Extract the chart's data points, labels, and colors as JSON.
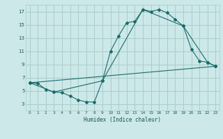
{
  "xlabel": "Humidex (Indice chaleur)",
  "background_color": "#cce8e8",
  "grid_color": "#aacccc",
  "line_color": "#1a6b6b",
  "xlim": [
    -0.5,
    23.5
  ],
  "ylim": [
    2.0,
    18.0
  ],
  "yticks": [
    3,
    5,
    7,
    9,
    11,
    13,
    15,
    17
  ],
  "xticks": [
    0,
    1,
    2,
    3,
    4,
    5,
    6,
    7,
    8,
    9,
    10,
    11,
    12,
    13,
    14,
    15,
    16,
    17,
    18,
    19,
    20,
    21,
    22,
    23
  ],
  "line1_x": [
    0,
    1,
    2,
    3,
    4,
    5,
    6,
    7,
    8,
    9,
    10,
    11,
    12,
    13,
    14,
    15,
    16,
    17,
    18,
    19,
    20,
    21,
    22,
    23
  ],
  "line1_y": [
    6.2,
    6.1,
    5.2,
    4.8,
    4.7,
    4.2,
    3.6,
    3.3,
    3.3,
    6.5,
    11.0,
    13.3,
    15.3,
    15.5,
    17.3,
    17.0,
    17.3,
    16.8,
    15.8,
    14.8,
    11.3,
    9.5,
    9.3,
    8.7
  ],
  "line2_x": [
    0,
    3,
    9,
    14,
    19,
    22,
    23
  ],
  "line2_y": [
    6.2,
    4.8,
    6.5,
    17.3,
    14.8,
    9.3,
    8.7
  ],
  "line3_x": [
    0,
    23
  ],
  "line3_y": [
    6.2,
    8.7
  ]
}
